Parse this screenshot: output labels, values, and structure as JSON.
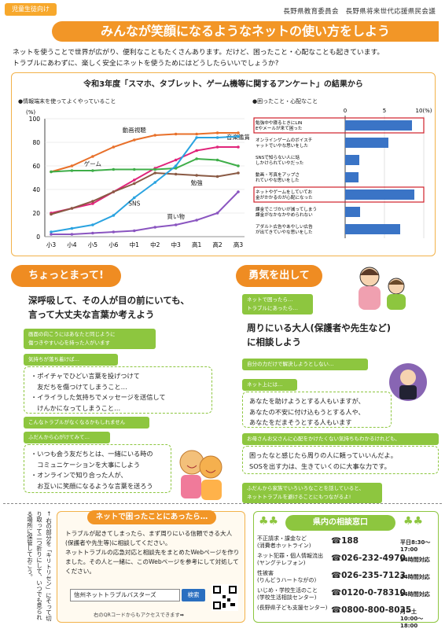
{
  "header": {
    "tag": "児童生徒向け",
    "org1": "長野県教育委員会",
    "org2": "長野県将来世代応援県民会議",
    "title": "みんなが笑顔になるようなネットの使い方をしよう"
  },
  "intro": {
    "line1": "ネットを使うことで世界が広がり、便利なこともたくさんあります。だけど、困ったこと・心配なことも起きています。",
    "line2": "トラブルにあわずに、楽しく安全にネットを使うためにはどうしたらいいでしょうか?"
  },
  "survey": {
    "title": "令和3年度「スマホ、タブレット、ゲーム機等に関するアンケート」の結果から",
    "left_label": "●情報端末を使ってよくやっていること",
    "right_label": "●困ったこと・心配なこと",
    "colors": {
      "video": "#e8702a",
      "music": "#e0247a",
      "game": "#3fae49",
      "study": "#8a5a44",
      "sns": "#2aa3e0",
      "shopping": "#8a55c0",
      "bar": "#3a74c6",
      "highlight": "#d0202a"
    }
  },
  "chart_data": [
    {
      "type": "line",
      "x": [
        "小3",
        "小4",
        "小5",
        "小6",
        "中1",
        "中2",
        "中3",
        "高1",
        "高2",
        "高3"
      ],
      "ylabel": "(%)",
      "ylim": [
        0,
        100
      ],
      "yticks": [
        "0",
        "20",
        "40",
        "60",
        "80",
        "100"
      ],
      "series": [
        {
          "name": "動画視聴",
          "values": [
            55,
            60,
            68,
            76,
            82,
            86,
            87,
            87,
            88,
            88
          ]
        },
        {
          "name": "音楽鑑賞",
          "values": [
            20,
            24,
            28,
            38,
            48,
            58,
            65,
            73,
            76,
            76
          ]
        },
        {
          "name": "ゲーム",
          "values": [
            55,
            56,
            56,
            57,
            57,
            57,
            58,
            66,
            65,
            60
          ]
        },
        {
          "name": "勉強",
          "values": [
            19,
            24,
            30,
            38,
            45,
            54,
            53,
            52,
            51,
            54
          ]
        },
        {
          "name": "SNS",
          "values": [
            4,
            7,
            10,
            18,
            33,
            46,
            60,
            84,
            84,
            85
          ]
        },
        {
          "name": "買い物",
          "values": [
            2,
            2,
            3,
            4,
            5,
            8,
            10,
            14,
            20,
            38
          ]
        }
      ]
    },
    {
      "type": "bar",
      "orientation": "horizontal",
      "xticks": [
        "0",
        "5",
        "10(%)"
      ],
      "xlim": [
        0,
        10
      ],
      "categories": [
        "勉強中や寝るときにLINEやメールが来て困った",
        "オンラインゲームのボイスチャットでいやな思いをした",
        "SNSで知らない人に話しかけられていやだった",
        "動画・写真をアップされていやな思いをした",
        "ネットやゲームをしていてお金がかかるのが心配になった",
        "課金でこづかいが減ってしまう課金がなかなかやめられない",
        "アダルト広告やあやしい広告が出てきていやな思いをした"
      ],
      "values": [
        8.5,
        5.5,
        1.8,
        1.7,
        8.8,
        1.9,
        7.0
      ],
      "highlighted": [
        0,
        4
      ]
    }
  ],
  "left": {
    "heading": "ちょっとまって!",
    "message1": "深呼吸して、その人が目の前にいても、",
    "message2": "言って大丈夫な言葉か考えよう",
    "tag1": "画面の向こうにはあなたと同じように",
    "tag1b": "傷つきやすい心を持った人がいます",
    "tag2": "気持ちが落ち着けば…",
    "box1": [
      "・ポイチャでひどい言葉を投げつけて",
      "　友だちを傷つけてしまうこと…",
      "・イライラした気持ちでメッセージを送信して",
      "　けんかになってしまうこと…"
    ],
    "tag3": "こんなトラブルがなくなるかもしれません",
    "tag4": "ふだんから心がけてみて…",
    "box2": [
      "・いつも会う友だちとは、一緒にいる時の",
      "　コミュニケーションを大事にしよう",
      "・オンラインで知り合った人が、",
      "　お互いに笑顔になるような言葉を送ろう"
    ]
  },
  "right": {
    "heading": "勇気を出して",
    "tag1": "ネットで困ったら…",
    "tag1b": "トラブルにあったら…",
    "message1": "周りにいる大人(保護者や先生など)",
    "message2": "に相談しよう",
    "tag2": "自分の力だけで解決しようとしない…",
    "tag3": "ネット上には…",
    "box1": [
      "あなたを助けようとする人もいますが、",
      "あなたの不安に付け込もうとする人や、",
      "あなたをだまそうとする人もいます"
    ],
    "tag4": "お母さんお父さんに心配をかけたくない気持ちもわかるけれども、",
    "box2": [
      "困ったなと感じたら周りの人に頼っていいんだよ。",
      "SOSを出す力は、生きていくのに大事な力です。"
    ],
    "tag5": "ふだんから家族でいろいろなことを話していると、",
    "tag5b": "ネットトラブルを避けることにもつながるよ!"
  },
  "bottom": {
    "heading": "ネットで困ったことにあったら…",
    "text": [
      "トラブルが起きてしまったら、まず周りにいる信頼できる大人(保護者や先生等)に相談してください。",
      "ネットトラブルの応急対応と相談先をまとめたWebページを作りました。その人と一緒に、このWebページを参考にして対処してください。"
    ],
    "search_value": "信州ネットトラブルバスターズ",
    "search_button": "検索",
    "qr_note": "右のQRコードからもアクセスできます➡"
  },
  "vertical_note": "← 右の部分を「キリトリセン」にそって切り取って二つ折りにして、いつでも見られる場所に保管しておこう。",
  "consult": {
    "heading": "県内の相談窓口",
    "rows": [
      {
        "name1": "不正請求・課金など",
        "name2": "(消費者ホットライン)",
        "phone": "☎188",
        "hours": "平日8:30〜17:00"
      },
      {
        "name1": "ネット犯罪・個人情報流出",
        "name2": "(ヤングテレフォン)",
        "phone": "☎026-232-4970",
        "hours": "24時間対応"
      },
      {
        "name1": "性被害",
        "name2": "(りんどうハートながの)",
        "phone": "☎026-235-7123",
        "hours": "24時間対応"
      },
      {
        "name1": "いじめ・学校生活のこと",
        "name2": "(学校生活相談センター)",
        "phone": "☎0120-0-78310",
        "hours": "24時間対応"
      },
      {
        "name1": "",
        "name2": "(長野県子ども支援センター)",
        "phone": "☎0800-800-8035",
        "hours": "月〜土10:00〜18:00"
      }
    ]
  }
}
